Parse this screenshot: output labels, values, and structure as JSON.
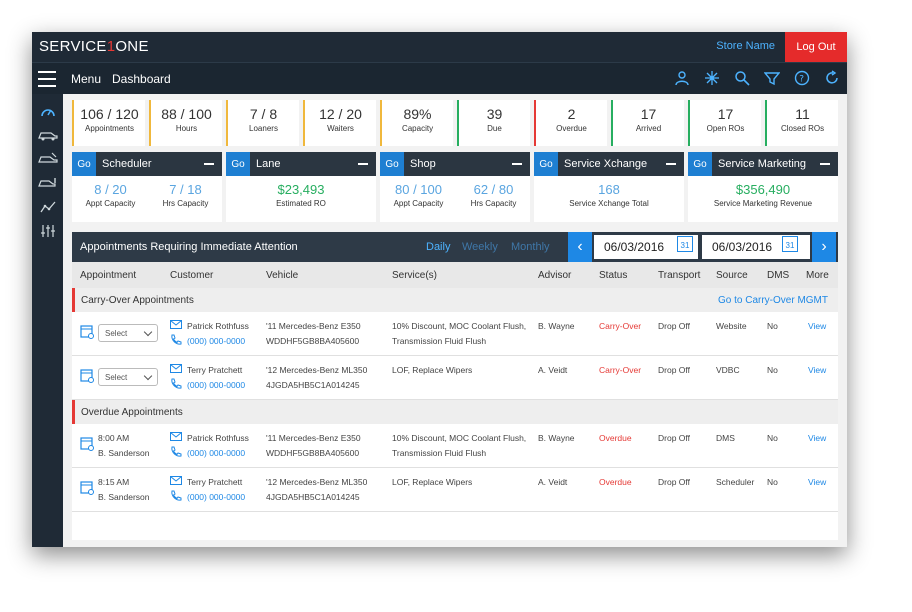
{
  "brand": {
    "prefix": "SERVICE",
    "one": "1",
    "suffix": "ONE"
  },
  "topbar": {
    "store_name": "Store Name",
    "logout": "Log Out"
  },
  "menubar": {
    "menu": "Menu",
    "dashboard": "Dashboard",
    "icons": [
      "user-icon",
      "network-icon",
      "search-icon",
      "filter-icon",
      "help-icon",
      "refresh-icon"
    ]
  },
  "sidebar": {
    "icons": [
      "dashboard-icon",
      "car-icon",
      "car-service-icon",
      "car-repair-icon",
      "analytics-icon",
      "settings-sliders-icon"
    ]
  },
  "kpis": [
    {
      "value": "106 / 120",
      "label": "Appointments",
      "color": "#f0b83c"
    },
    {
      "value": "88 / 100",
      "label": "Hours",
      "color": "#f0b83c"
    },
    {
      "value": "7 / 8",
      "label": "Loaners",
      "color": "#f0b83c"
    },
    {
      "value": "12 / 20",
      "label": "Waiters",
      "color": "#f0b83c"
    },
    {
      "value": "89%",
      "label": "Capacity",
      "color": "#f0b83c"
    },
    {
      "value": "39",
      "label": "Due",
      "color": "#27ae60"
    },
    {
      "value": "2",
      "label": "Overdue",
      "color": "#e53935"
    },
    {
      "value": "17",
      "label": "Arrived",
      "color": "#27ae60"
    },
    {
      "value": "17",
      "label": "Open ROs",
      "color": "#27ae60"
    },
    {
      "value": "11",
      "label": "Closed ROs",
      "color": "#27ae60"
    }
  ],
  "panels": [
    {
      "go": "Go",
      "title": "Scheduler",
      "values": [
        {
          "n": "8 / 20",
          "c": "Appt Capacity"
        },
        {
          "n": "7 / 18",
          "c": "Hrs Capacity"
        }
      ]
    },
    {
      "go": "Go",
      "title": "Lane",
      "values": [
        {
          "n": "$23,493",
          "c": "Estimated RO"
        }
      ]
    },
    {
      "go": "Go",
      "title": "Shop",
      "values": [
        {
          "n": "80 / 100",
          "c": "Appt Capacity"
        },
        {
          "n": "62 / 80",
          "c": "Hrs Capacity"
        }
      ]
    },
    {
      "go": "Go",
      "title": "Service Xchange",
      "values": [
        {
          "n": "168",
          "c": "Service Xchange Total"
        }
      ]
    },
    {
      "go": "Go",
      "title": "Service Marketing",
      "values": [
        {
          "n": "$356,490",
          "c": "Service Marketing Revenue"
        }
      ]
    }
  ],
  "appointments": {
    "title": "Appointments Requiring Immediate Attention",
    "tabs": [
      "Daily",
      "Weekly",
      "Monthly"
    ],
    "date_start": "06/03/2016",
    "date_end": "06/03/2016",
    "columns": [
      "Appointment",
      "Customer",
      "Vehicle",
      "Service(s)",
      "Advisor",
      "Status",
      "Transport",
      "Source",
      "DMS",
      "More"
    ],
    "sections": [
      {
        "title": "Carry-Over Appointments",
        "link": "Go to Carry-Over MGMT",
        "rows": [
          {
            "appt": "Select",
            "name": "Patrick Rothfuss",
            "phone": "(000) 000-0000",
            "vehicle": "'11 Mercedes-Benz E350",
            "vin": "WDDHF5GB8BA405600",
            "service1": "10% Discount, MOC Coolant Flush,",
            "service2": "Transmission Fluid Flush",
            "advisor": "B. Wayne",
            "status": "Carry-Over",
            "transport": "Drop Off",
            "source": "Website",
            "dms": "No",
            "more": "View"
          },
          {
            "appt": "Select",
            "name": "Terry Pratchett",
            "phone": "(000) 000-0000",
            "vehicle": "'12 Mercedes-Benz ML350",
            "vin": "4JGDA5HB5C1A014245",
            "service1": "LOF, Replace Wipers",
            "service2": "",
            "advisor": "A. Veidt",
            "status": "Carry-Over",
            "transport": "Drop Off",
            "source": "VDBC",
            "dms": "No",
            "more": "View"
          }
        ]
      },
      {
        "title": "Overdue Appointments",
        "link": "",
        "rows": [
          {
            "appt": "8:00 AM",
            "appt2": "B. Sanderson",
            "name": "Patrick Rothfuss",
            "phone": "(000) 000-0000",
            "vehicle": "'11 Mercedes-Benz E350",
            "vin": "WDDHF5GB8BA405600",
            "service1": "10% Discount, MOC Coolant Flush,",
            "service2": "Transmission Fluid Flush",
            "advisor": "B. Wayne",
            "status": "Overdue",
            "transport": "Drop Off",
            "source": "DMS",
            "dms": "No",
            "more": "View"
          },
          {
            "appt": "8:15 AM",
            "appt2": "B. Sanderson",
            "name": "Terry Pratchett",
            "phone": "(000) 000-0000",
            "vehicle": "'12 Mercedes-Benz ML350",
            "vin": "4JGDA5HB5C1A014245",
            "service1": "LOF, Replace Wipers",
            "service2": "",
            "advisor": "A. Veidt",
            "status": "Overdue",
            "transport": "Drop Off",
            "source": "Scheduler",
            "dms": "No",
            "more": "View"
          }
        ]
      }
    ]
  },
  "colors": {
    "accent": "#1e88e5",
    "header": "#1f2a36",
    "logout": "#e52b2b",
    "warn": "#f0b83c",
    "ok": "#27ae60",
    "alert": "#e53935"
  }
}
